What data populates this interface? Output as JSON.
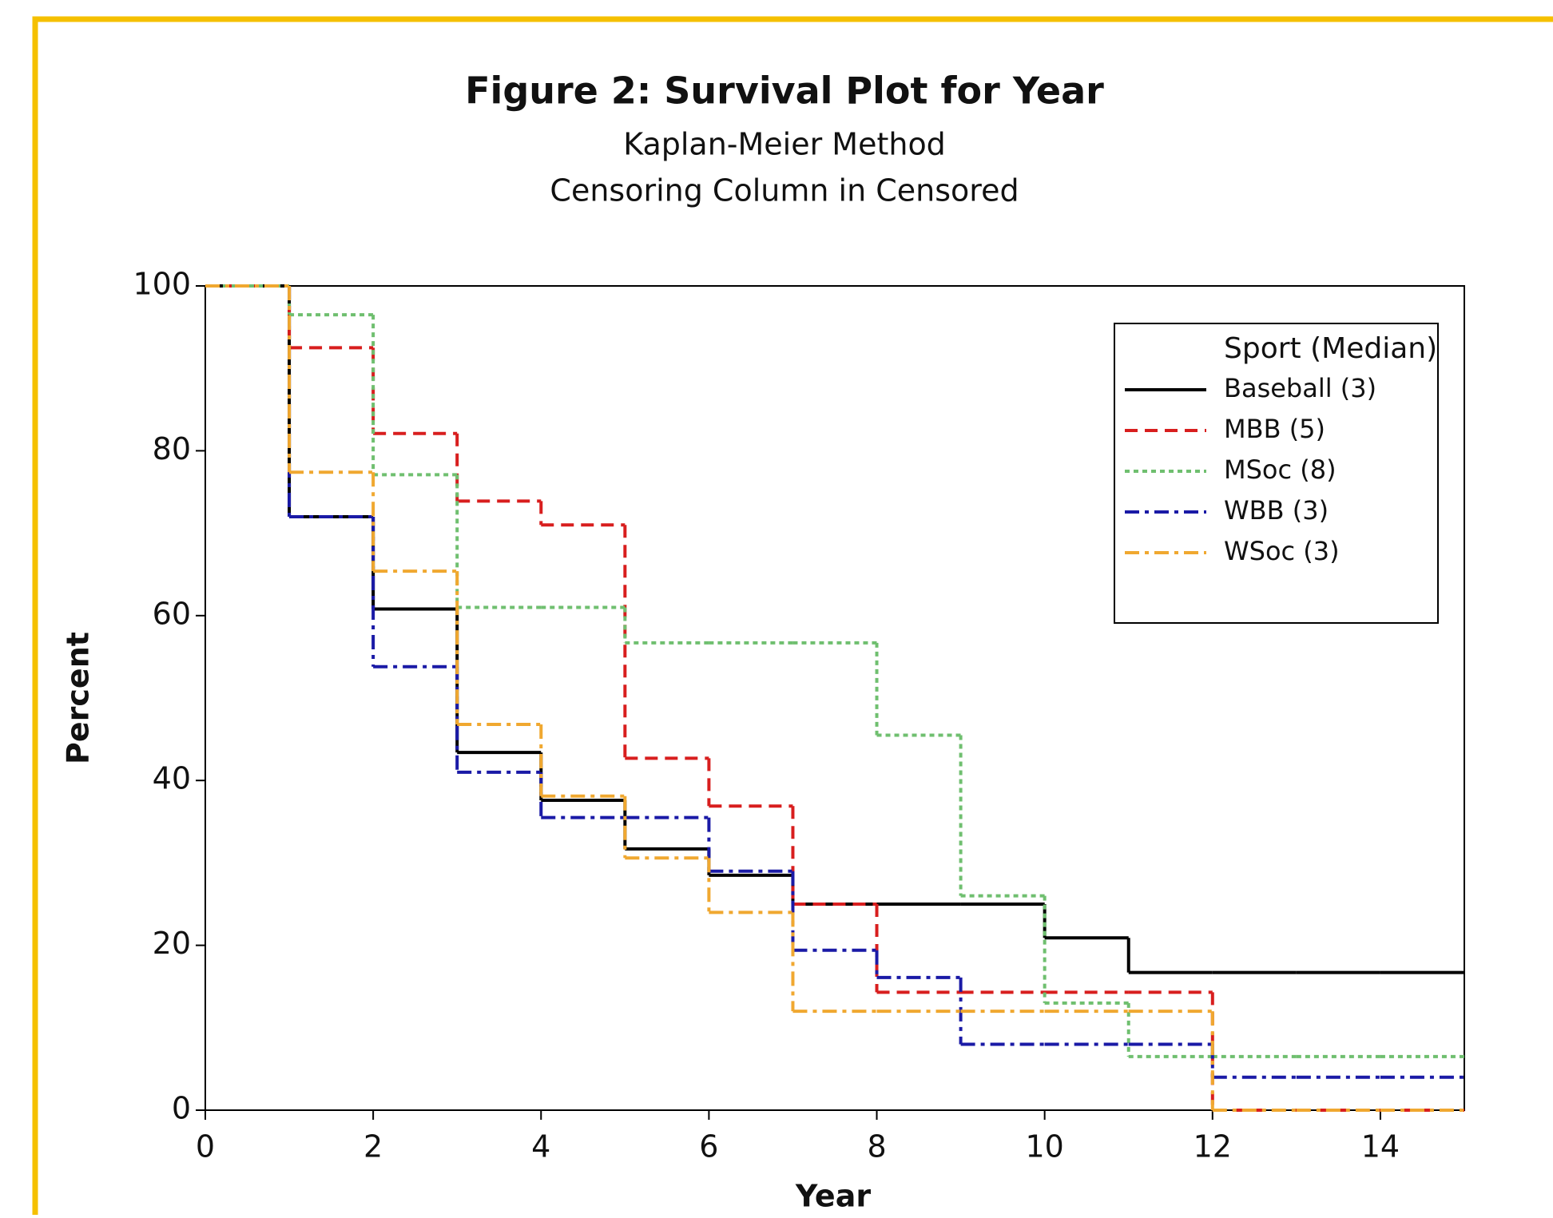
{
  "chart_data": {
    "type": "step",
    "title": "Figure 2: Survival Plot for Year",
    "subtitle": [
      "Kaplan-Meier Method",
      "Censoring Column in Censored"
    ],
    "x_label": "Year",
    "y_label": "Percent",
    "legend_title": "Sport (Median)",
    "legend_position": "upper right",
    "x": [
      0,
      1,
      2,
      3,
      4,
      5,
      6,
      7,
      8,
      9,
      10,
      11,
      12,
      13,
      14
    ],
    "xlim": [
      0,
      15
    ],
    "xticks": [
      0,
      2,
      4,
      6,
      8,
      10,
      12,
      14
    ],
    "ylim": [
      0,
      100
    ],
    "yticks": [
      0,
      20,
      40,
      60,
      80,
      100
    ],
    "series": [
      {
        "name": "Baseball (3)",
        "color": "#000000",
        "dash": "none",
        "values": [
          100,
          72,
          60.8,
          43.4,
          37.6,
          31.7,
          28.5,
          25,
          25,
          25,
          20.9,
          16.7,
          16.7,
          16.7,
          16.7
        ]
      },
      {
        "name": "MBB (5)",
        "color": "#d81e1e",
        "dash": "16,9",
        "values": [
          100,
          92.5,
          82.1,
          73.9,
          71,
          42.7,
          36.9,
          25,
          14.3,
          14.3,
          14.3,
          14.3,
          0,
          0,
          0
        ]
      },
      {
        "name": "MSoc (8)",
        "color": "#6fbf6f",
        "dash": "6,5",
        "values": [
          100,
          96.5,
          77.1,
          61,
          61,
          56.7,
          56.7,
          56.7,
          45.5,
          26,
          13,
          6.5,
          6.5,
          6.5,
          6.5
        ]
      },
      {
        "name": "WBB (3)",
        "color": "#1a1aa6",
        "dash": "18,7,5,7",
        "values": [
          100,
          72,
          53.8,
          41,
          35.5,
          35.5,
          29,
          19.4,
          16.1,
          8,
          8,
          8,
          4,
          4,
          4
        ]
      },
      {
        "name": "WSoc (3)",
        "color": "#f0a830",
        "dash": "18,7,5,7",
        "values": [
          100,
          77.4,
          65.4,
          46.8,
          38.1,
          30.6,
          24,
          12,
          12,
          12,
          12,
          12,
          0,
          0,
          0
        ]
      }
    ]
  }
}
